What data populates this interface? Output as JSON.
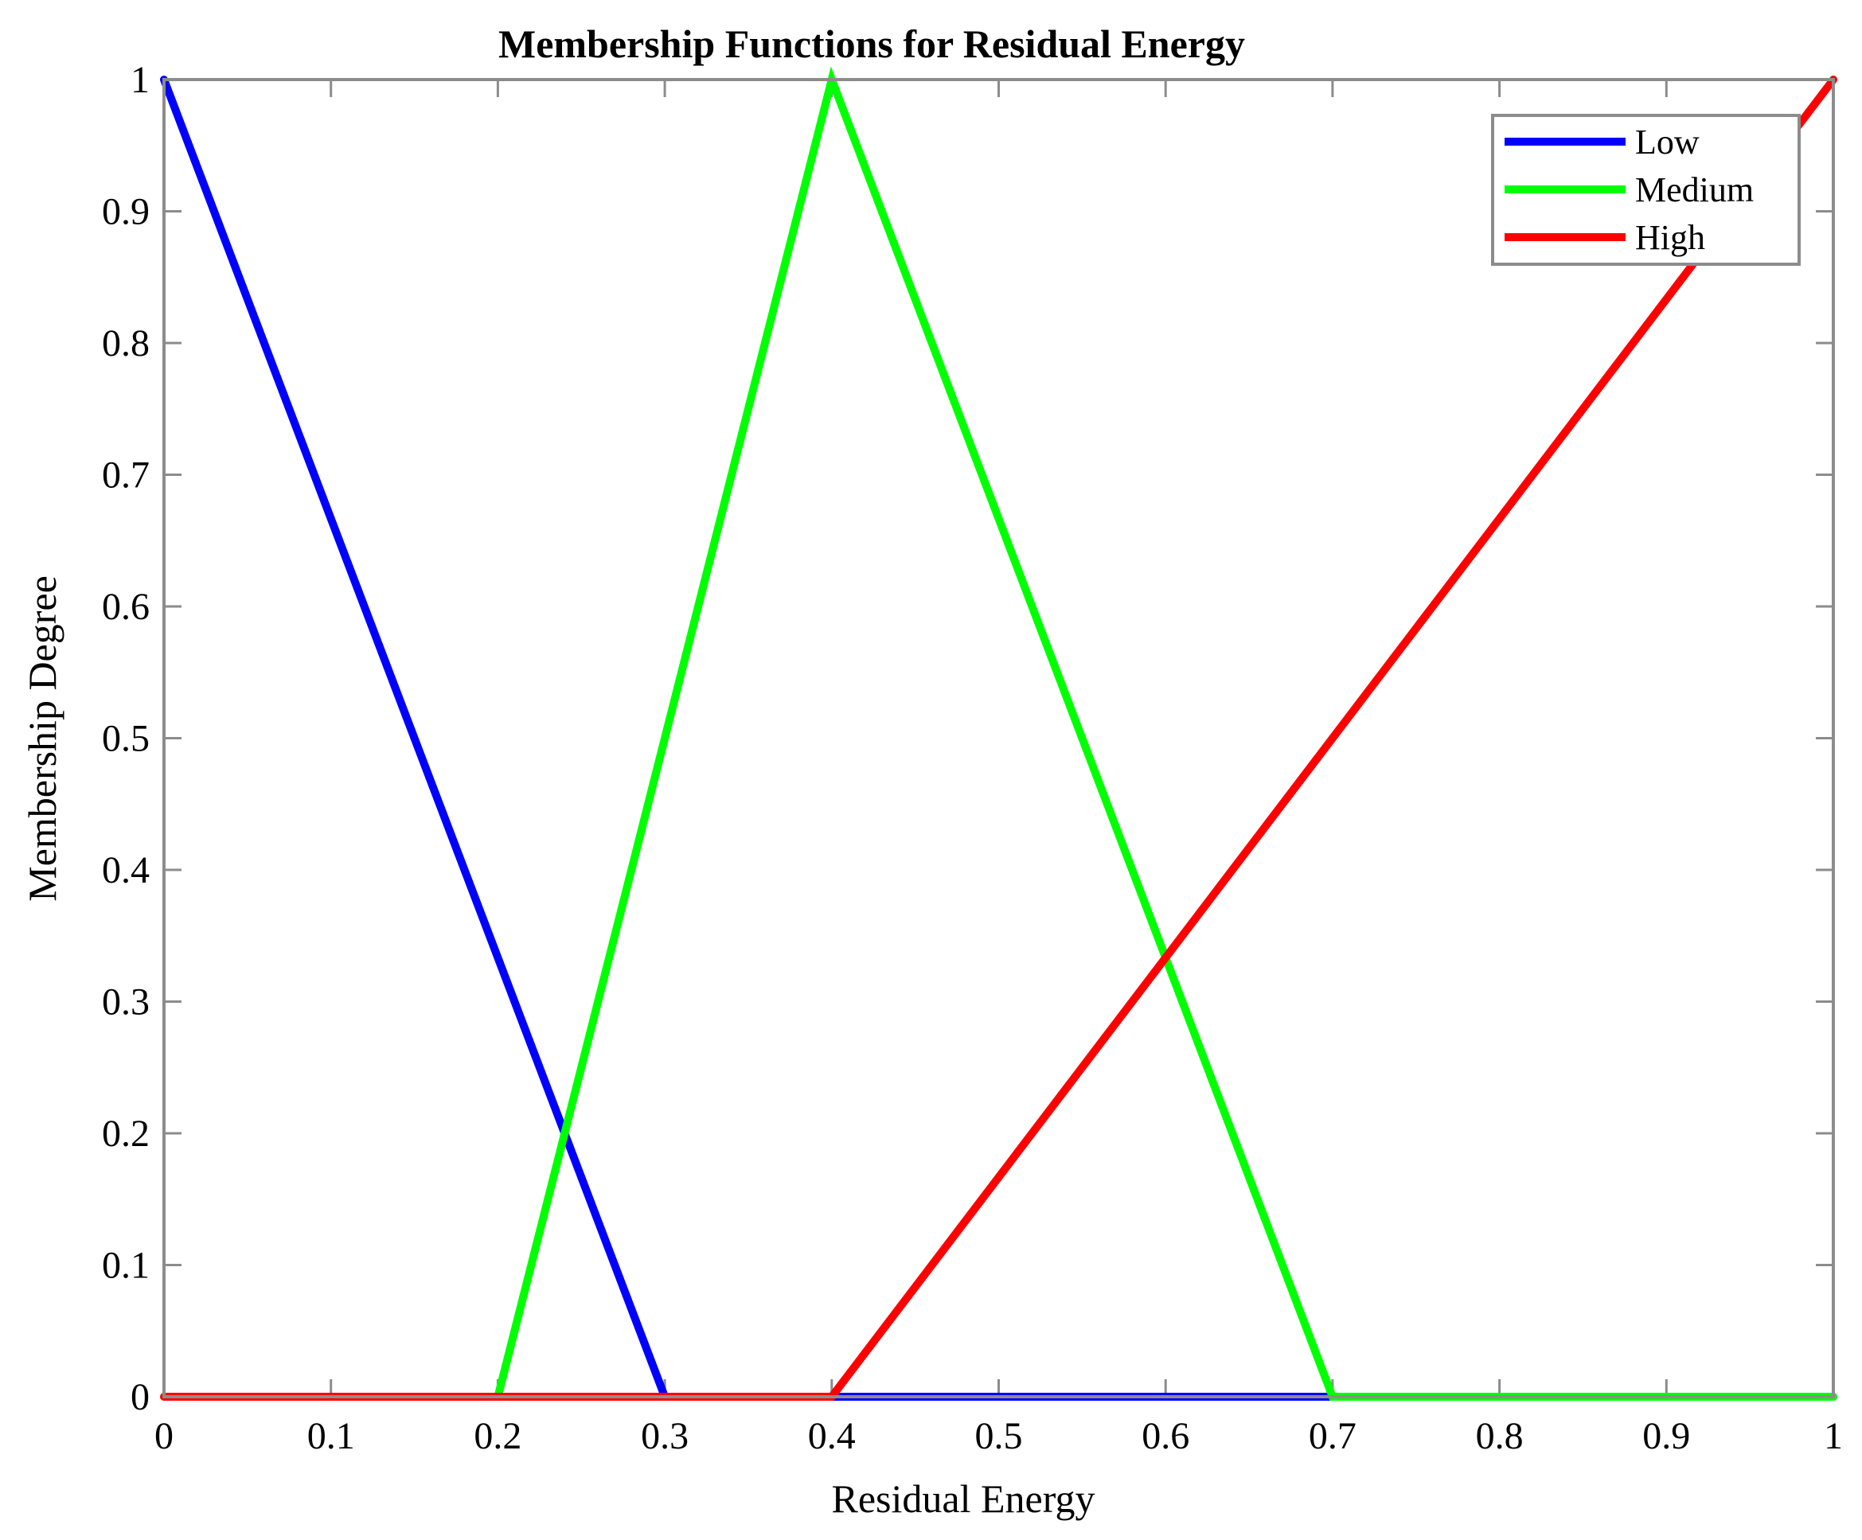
{
  "chart_data": {
    "type": "line",
    "title": "Membership Functions for Residual Energy",
    "xlabel": "Residual Energy",
    "ylabel": "Membership Degree",
    "xlim": [
      0,
      1
    ],
    "ylim": [
      0,
      1
    ],
    "xticks": [
      "0",
      "0.1",
      "0.2",
      "0.3",
      "0.4",
      "0.5",
      "0.6",
      "0.7",
      "0.8",
      "0.9",
      "1"
    ],
    "yticks": [
      "0",
      "0.1",
      "0.2",
      "0.3",
      "0.4",
      "0.5",
      "0.6",
      "0.7",
      "0.8",
      "0.9",
      "1"
    ],
    "grid": false,
    "legend_position": "top-right",
    "series": [
      {
        "name": "Low",
        "color": "#0000ff",
        "x": [
          0,
          0.3,
          1
        ],
        "y": [
          1,
          0,
          0
        ]
      },
      {
        "name": "Medium",
        "color": "#00ff00",
        "x": [
          0,
          0.2,
          0.4,
          0.7,
          1
        ],
        "y": [
          0,
          0,
          1,
          0,
          0
        ]
      },
      {
        "name": "High",
        "color": "#ff0000",
        "x": [
          0,
          0.4,
          1
        ],
        "y": [
          0,
          0,
          1
        ]
      }
    ]
  }
}
